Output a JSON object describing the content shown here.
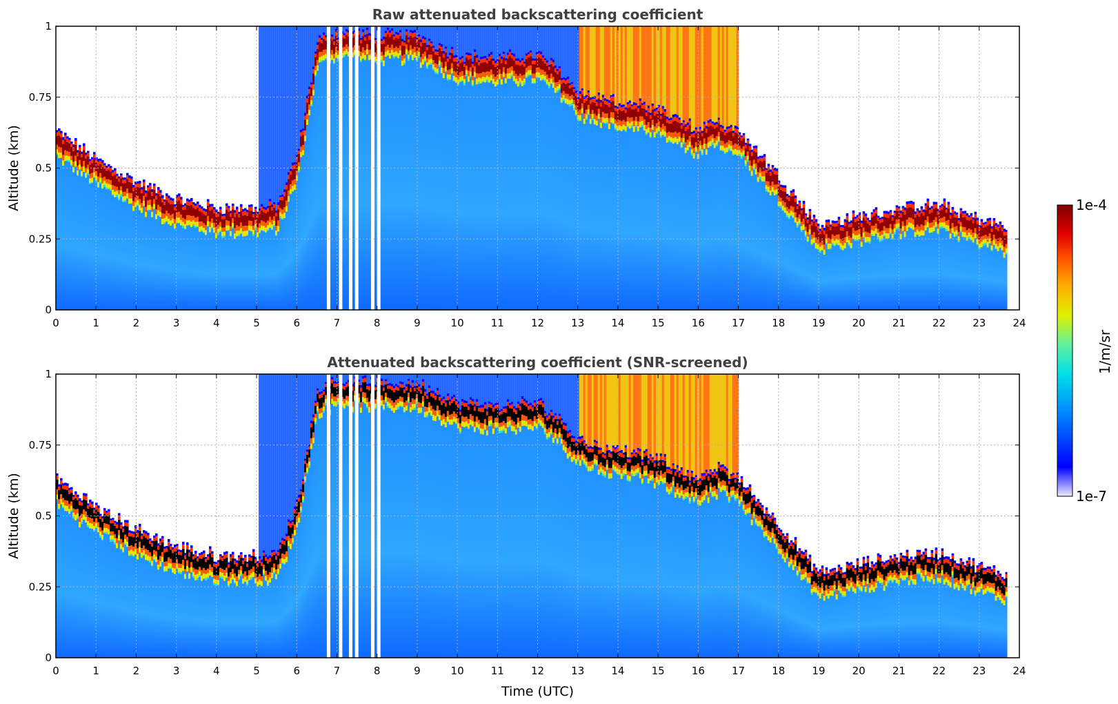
{
  "chart_data": [
    {
      "type": "heatmap",
      "title": "Raw attenuated backscattering coefficient",
      "xlabel": "",
      "ylabel": "Altitude (km)",
      "xlim": [
        0,
        24
      ],
      "ylim": [
        0,
        1
      ],
      "x_ticks": [
        "0",
        "1",
        "2",
        "3",
        "4",
        "5",
        "6",
        "7",
        "8",
        "9",
        "10",
        "11",
        "12",
        "13",
        "14",
        "15",
        "16",
        "17",
        "18",
        "19",
        "20",
        "21",
        "22",
        "23",
        "24"
      ],
      "y_ticks": [
        "0",
        "0.25",
        "0.5",
        "0.75",
        "1"
      ],
      "grid": true,
      "cloud_layer": {
        "time": [
          0,
          1,
          2,
          3,
          4,
          5,
          5.5,
          6,
          6.5,
          7,
          8,
          9,
          10,
          11,
          12,
          12.5,
          13,
          13.5,
          14,
          14.5,
          15,
          15.5,
          16,
          16.5,
          17,
          17.5,
          18,
          18.5,
          19,
          20,
          21,
          22,
          23,
          23.7
        ],
        "altitude_km": [
          0.58,
          0.48,
          0.4,
          0.34,
          0.31,
          0.31,
          0.32,
          0.5,
          0.9,
          0.93,
          0.92,
          0.92,
          0.85,
          0.84,
          0.85,
          0.8,
          0.72,
          0.7,
          0.68,
          0.67,
          0.65,
          0.62,
          0.58,
          0.62,
          0.58,
          0.5,
          0.42,
          0.33,
          0.25,
          0.28,
          0.31,
          0.32,
          0.27,
          0.24
        ]
      },
      "data_gaps_time": [
        6.75,
        7.05,
        7.3,
        7.45,
        7.85,
        8.0
      ]
    },
    {
      "type": "heatmap",
      "title": "Attenuated backscattering coefficient (SNR-screened)",
      "xlabel": "Time (UTC)",
      "ylabel": "Altitude (km)",
      "xlim": [
        0,
        24
      ],
      "ylim": [
        0,
        1
      ],
      "x_ticks": [
        "0",
        "1",
        "2",
        "3",
        "4",
        "5",
        "6",
        "7",
        "8",
        "9",
        "10",
        "11",
        "12",
        "13",
        "14",
        "15",
        "16",
        "17",
        "18",
        "19",
        "20",
        "21",
        "22",
        "23",
        "24"
      ],
      "y_ticks": [
        "0",
        "0.25",
        "0.5",
        "0.75",
        "1"
      ],
      "grid": true,
      "cloud_layer": {
        "time": [
          0,
          1,
          2,
          3,
          4,
          5,
          5.5,
          6,
          6.5,
          7,
          8,
          9,
          10,
          11,
          12,
          12.5,
          13,
          13.5,
          14,
          14.5,
          15,
          15.5,
          16,
          16.5,
          17,
          17.5,
          18,
          18.5,
          19,
          20,
          21,
          22,
          23,
          23.7
        ],
        "altitude_km": [
          0.58,
          0.48,
          0.4,
          0.34,
          0.31,
          0.31,
          0.32,
          0.5,
          0.9,
          0.93,
          0.92,
          0.92,
          0.85,
          0.84,
          0.85,
          0.8,
          0.72,
          0.7,
          0.68,
          0.67,
          0.65,
          0.62,
          0.58,
          0.62,
          0.58,
          0.5,
          0.42,
          0.33,
          0.25,
          0.28,
          0.31,
          0.32,
          0.27,
          0.24
        ]
      },
      "data_gaps_time": [
        6.75,
        7.05,
        7.3,
        7.45,
        7.85,
        8.0
      ]
    }
  ],
  "colorbar": {
    "label": "1/m/sr",
    "max_label": "1e-4",
    "min_label": "1e-7",
    "colormap": [
      "#ebebff",
      "#0000ff",
      "#0090ff",
      "#00e0e8",
      "#60f0a0",
      "#e0f000",
      "#ffb000",
      "#ff5000",
      "#e00000",
      "#800000"
    ]
  }
}
